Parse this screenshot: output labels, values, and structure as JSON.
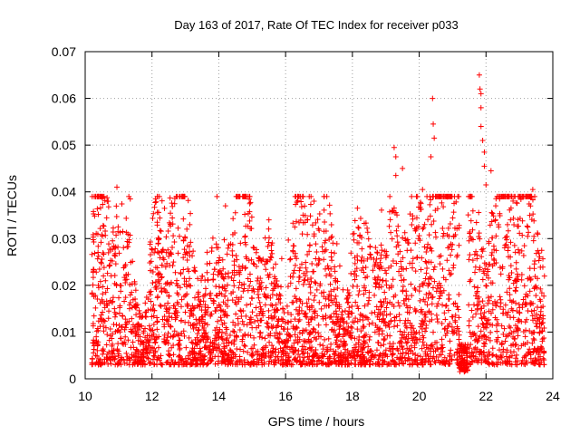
{
  "chart_data": {
    "type": "scatter",
    "title": "Day 163 of 2017, Rate Of TEC Index for receiver p033",
    "xlabel": "GPS time / hours",
    "ylabel": "ROTI / TECUs",
    "xlim": [
      10,
      24
    ],
    "ylim": [
      0,
      0.07
    ],
    "x_ticks": [
      10,
      12,
      14,
      16,
      18,
      20,
      22,
      24
    ],
    "y_ticks": [
      0,
      0.01,
      0.02,
      0.03,
      0.04,
      0.05,
      0.06,
      0.07
    ],
    "x_tick_labels": [
      "10",
      "12",
      "14",
      "16",
      "18",
      "20",
      "22",
      "24"
    ],
    "y_tick_labels": [
      "0",
      "0.01",
      "0.02",
      "0.03",
      "0.04",
      "0.05",
      "0.06",
      "0.07"
    ],
    "grid": true,
    "marker": "+",
    "marker_color": "#ff0000",
    "series": [
      {
        "name": "ROTI",
        "data_range_x": [
          10.2,
          23.75
        ],
        "typical_range_y": [
          0.003,
          0.03
        ],
        "notable_points": [
          {
            "x": 10.95,
            "y": 0.041
          },
          {
            "x": 11.35,
            "y": 0.0385
          },
          {
            "x": 14.2,
            "y": 0.037
          },
          {
            "x": 15.5,
            "y": 0.034
          },
          {
            "x": 16.85,
            "y": 0.038
          },
          {
            "x": 17.15,
            "y": 0.039
          },
          {
            "x": 18.15,
            "y": 0.0365
          },
          {
            "x": 19.25,
            "y": 0.0495
          },
          {
            "x": 19.3,
            "y": 0.0475
          },
          {
            "x": 19.3,
            "y": 0.0435
          },
          {
            "x": 19.5,
            "y": 0.045
          },
          {
            "x": 20.1,
            "y": 0.0405
          },
          {
            "x": 20.35,
            "y": 0.0475
          },
          {
            "x": 20.4,
            "y": 0.06
          },
          {
            "x": 20.42,
            "y": 0.0545
          },
          {
            "x": 20.45,
            "y": 0.0515
          },
          {
            "x": 21.25,
            "y": 0.002
          },
          {
            "x": 21.35,
            "y": 0.0015
          },
          {
            "x": 21.8,
            "y": 0.065
          },
          {
            "x": 21.82,
            "y": 0.062
          },
          {
            "x": 21.85,
            "y": 0.061
          },
          {
            "x": 21.85,
            "y": 0.058
          },
          {
            "x": 21.85,
            "y": 0.054
          },
          {
            "x": 21.9,
            "y": 0.051
          },
          {
            "x": 21.95,
            "y": 0.0485
          },
          {
            "x": 21.95,
            "y": 0.0455
          },
          {
            "x": 22.0,
            "y": 0.0415
          },
          {
            "x": 22.15,
            "y": 0.0445
          },
          {
            "x": 23.4,
            "y": 0.0405
          }
        ]
      }
    ]
  }
}
